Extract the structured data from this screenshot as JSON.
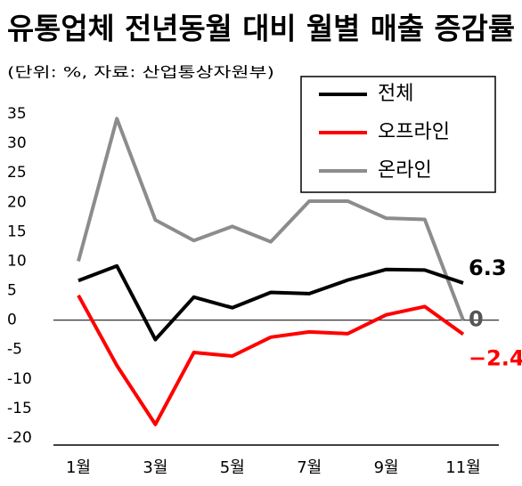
{
  "chart_data": {
    "type": "line",
    "title": "유통업체 전년동월 대비 월별 매출 증감률",
    "subtitle": "(단위: %, 자료: 산업통상자원부)",
    "categories": [
      "1월",
      null,
      "3월",
      null,
      "5월",
      null,
      "7월",
      null,
      "9월",
      null,
      "11월"
    ],
    "series": [
      {
        "name": "전체",
        "color": "#000000",
        "values": [
          6.7,
          9.2,
          -3.3,
          3.9,
          2.1,
          4.7,
          4.5,
          6.8,
          8.6,
          8.5,
          6.3
        ],
        "value_labels": [
          null,
          null,
          null,
          null,
          null,
          null,
          null,
          null,
          null,
          null,
          "6.3"
        ]
      },
      {
        "name": "오프라인",
        "color": "#ff0000",
        "values": [
          4.2,
          -7.7,
          -17.7,
          -5.5,
          -6.1,
          -2.9,
          -2.0,
          -2.3,
          0.9,
          2.3,
          -2.4
        ],
        "value_labels": [
          null,
          null,
          null,
          null,
          null,
          null,
          null,
          null,
          null,
          null,
          "−2.4"
        ]
      },
      {
        "name": "온라인",
        "color": "#8c8c8c",
        "values": [
          10.0,
          34.2,
          17.0,
          13.5,
          15.9,
          13.3,
          20.2,
          20.2,
          17.3,
          17.1,
          0
        ],
        "value_labels": [
          null,
          null,
          null,
          null,
          null,
          null,
          null,
          null,
          null,
          null,
          "0"
        ]
      }
    ],
    "ylim": [
      -20,
      35
    ],
    "yticks": [
      35,
      30,
      25,
      20,
      15,
      10,
      5,
      0,
      -5,
      -10,
      -15,
      -20
    ]
  }
}
